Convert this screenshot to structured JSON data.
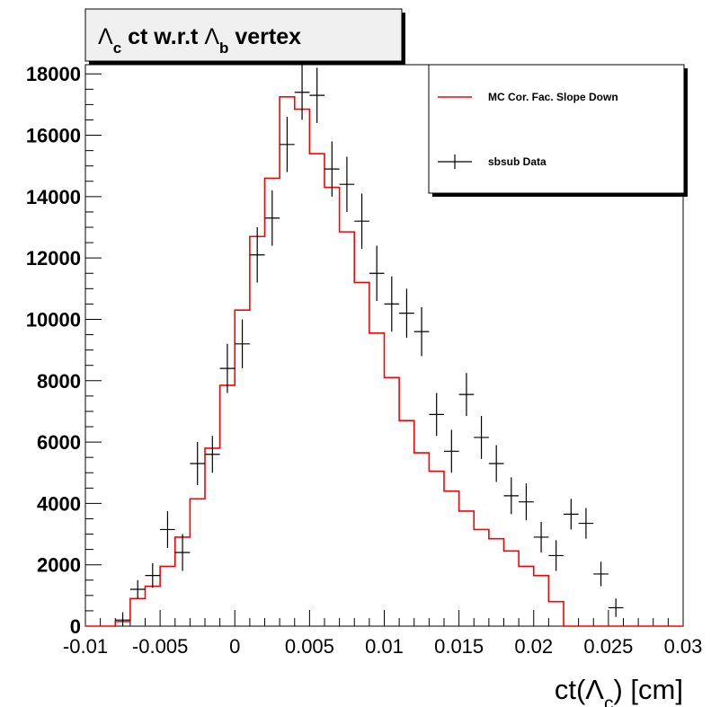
{
  "colors": {
    "mc": "#ff0000",
    "data": "#000000",
    "frame": "#000000",
    "background": "#ffffff",
    "title_box": "#f0f0f0"
  },
  "chart_data": {
    "type": "histogram",
    "title": {
      "parts": [
        "Λ",
        "c",
        " ct w.r.t ",
        "Λ",
        "b",
        " vertex"
      ]
    },
    "xlabel": {
      "parts": [
        "ct(",
        "Λ",
        "c",
        ") [cm]"
      ]
    },
    "ylabel": "",
    "xlim": [
      -0.01,
      0.03
    ],
    "ylim": [
      0,
      18300
    ],
    "x_ticks": [
      -0.01,
      -0.005,
      0,
      0.005,
      0.01,
      0.015,
      0.02,
      0.025,
      0.03
    ],
    "x_tick_labels": [
      "-0.01",
      "-0.005",
      "0",
      "0.005",
      "0.01",
      "0.015",
      "0.02",
      "0.025",
      "0.03"
    ],
    "y_ticks": [
      0,
      2000,
      4000,
      6000,
      8000,
      10000,
      12000,
      14000,
      16000,
      18000
    ],
    "y_tick_labels": [
      "0",
      "2000",
      "4000",
      "6000",
      "8000",
      "10000",
      "12000",
      "14000",
      "16000",
      "18000"
    ],
    "bin_edges": [
      -0.01,
      -0.009,
      -0.008,
      -0.007,
      -0.006,
      -0.005,
      -0.004,
      -0.003,
      -0.002,
      -0.001,
      0,
      0.001,
      0.002,
      0.003,
      0.004,
      0.005,
      0.006,
      0.007,
      0.008,
      0.009,
      0.01,
      0.011,
      0.012,
      0.013,
      0.014,
      0.015,
      0.016,
      0.017,
      0.018,
      0.019,
      0.02,
      0.021,
      0.022,
      0.023,
      0.024,
      0.025,
      0.026,
      0.027,
      0.028,
      0.029,
      0.03
    ],
    "legend_position": "top-right",
    "grid": false,
    "series": [
      {
        "name": "MC Cor. Fac. Slope Down",
        "kind": "step",
        "color": "#ff0000",
        "values": [
          0,
          0,
          150,
          900,
          1300,
          1950,
          2900,
          4150,
          5800,
          7850,
          10300,
          12700,
          14600,
          17250,
          16850,
          15400,
          14300,
          12850,
          11200,
          9550,
          8100,
          6700,
          5650,
          5050,
          4400,
          3750,
          3150,
          2850,
          2450,
          1950,
          1650,
          800,
          0,
          0,
          0,
          0,
          0,
          0,
          0,
          0
        ]
      },
      {
        "name": "sbsub Data",
        "kind": "errorbar",
        "color": "#000000",
        "values": [
          null,
          null,
          200,
          1200,
          1650,
          3150,
          2400,
          5300,
          5600,
          8400,
          9200,
          12100,
          13300,
          15700,
          17400,
          17300,
          14900,
          14400,
          13200,
          11500,
          10500,
          10200,
          9600,
          6900,
          5700,
          7550,
          6150,
          5300,
          4250,
          4050,
          2900,
          2300,
          3650,
          3350,
          1700,
          600,
          null,
          null,
          null,
          null
        ],
        "errors": [
          null,
          null,
          250,
          300,
          400,
          600,
          600,
          700,
          600,
          800,
          800,
          900,
          900,
          900,
          900,
          900,
          900,
          900,
          900,
          900,
          900,
          800,
          800,
          700,
          700,
          700,
          700,
          600,
          600,
          600,
          500,
          500,
          500,
          500,
          400,
          300,
          null,
          null,
          null,
          null
        ]
      }
    ]
  }
}
